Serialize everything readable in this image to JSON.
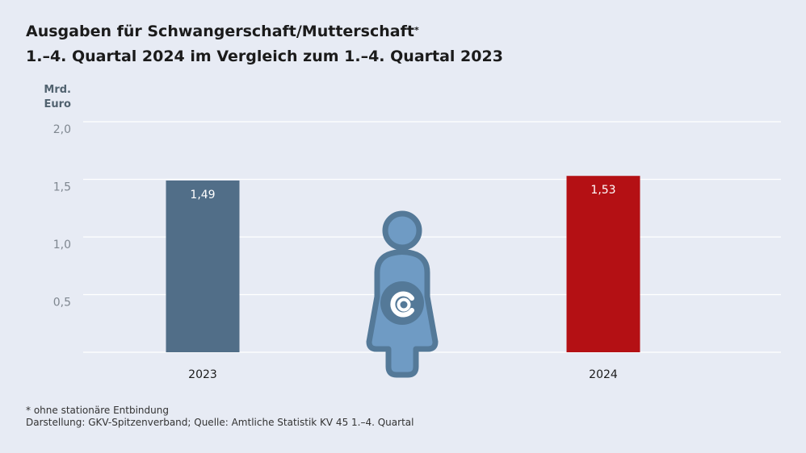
{
  "title": {
    "line1": "Ausgaben für Schwangerschaft/Mutterschaft",
    "line1_mark": "*",
    "line2": "1.–4. Quartal 2024 im Vergleich zum 1.–4. Quartal 2023"
  },
  "footnotes": {
    "note": "* ohne stationäre Entbindung",
    "source": "Darstellung: GKV-Spitzenverband; Quelle: Amtliche Statistik KV 45 1.–4. Quartal"
  },
  "chart_data": {
    "type": "bar",
    "title": "Ausgaben für Schwangerschaft/Mutterschaft* 1.–4. Quartal 2024 im Vergleich zum 1.–4. Quartal 2023",
    "ylabel": "Mrd. Euro",
    "ylabel_lines": [
      "Mrd.",
      "Euro"
    ],
    "categories": [
      "2023",
      "2024"
    ],
    "values": [
      1.49,
      1.53
    ],
    "value_labels": [
      "1,49",
      "1,53"
    ],
    "bar_colors": [
      "#516e88",
      "#b41014"
    ],
    "ylim": [
      0,
      2.0
    ],
    "yticks": [
      0.5,
      1.0,
      1.5,
      2.0
    ],
    "ytick_labels": [
      "0,5",
      "1,0",
      "1,5",
      "2,0"
    ],
    "grid": true,
    "legend": "none",
    "icon": "pregnant-woman-icon"
  }
}
